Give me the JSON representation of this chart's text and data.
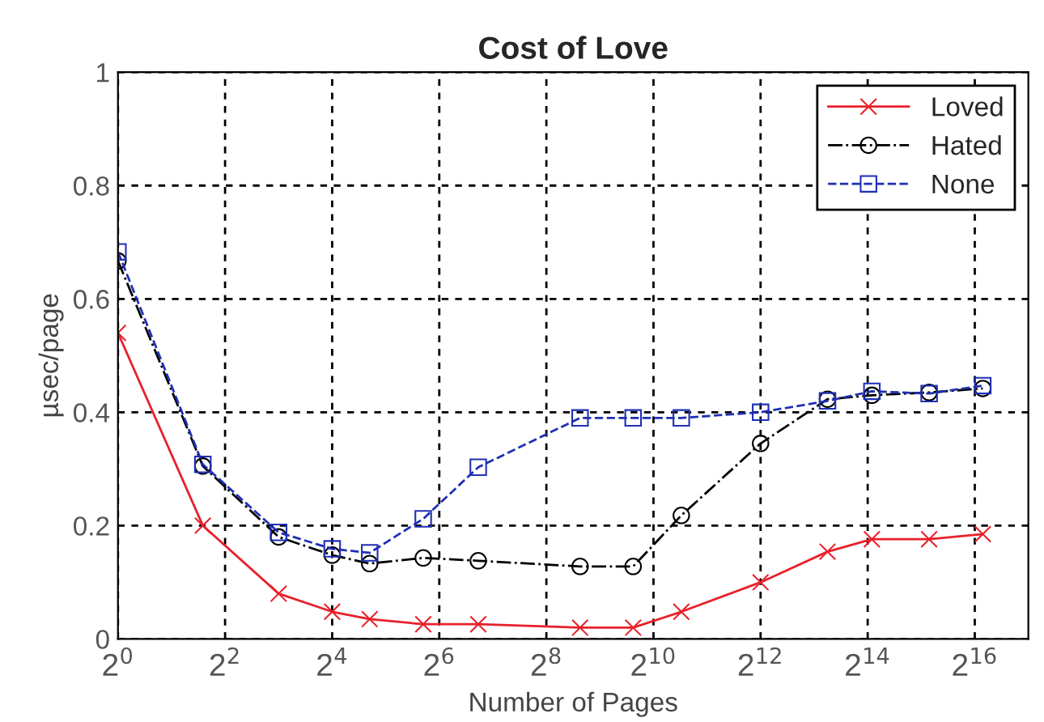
{
  "chart_data": {
    "type": "line",
    "title": "Cost of Love",
    "xlabel": "Number of Pages",
    "ylabel": "µsec/page",
    "x": [
      1,
      3,
      8,
      16,
      26,
      52,
      106,
      396,
      787,
      1468,
      4096,
      9741,
      17300,
      36300,
      72700
    ],
    "series": [
      {
        "name": "Loved",
        "color": "#e8212b",
        "marker": "cross",
        "line_style": "solid",
        "values": [
          0.54,
          0.2,
          0.08,
          0.048,
          0.035,
          0.026,
          0.026,
          0.02,
          0.02,
          0.048,
          0.1,
          0.154,
          0.176,
          0.176,
          0.185
        ]
      },
      {
        "name": "Hated",
        "color": "#000000",
        "marker": "circle",
        "line_style": "dashed",
        "values": [
          0.667,
          0.305,
          0.18,
          0.148,
          0.133,
          0.143,
          0.138,
          0.128,
          0.128,
          0.218,
          0.345,
          0.423,
          0.43,
          0.435,
          0.442
        ]
      },
      {
        "name": "None",
        "color": "#1f2fb4",
        "marker": "square",
        "line_style": "dotted",
        "values": [
          0.683,
          0.308,
          0.188,
          0.159,
          0.152,
          0.212,
          0.303,
          0.39,
          0.39,
          0.39,
          0.4,
          0.42,
          0.437,
          0.433,
          0.447
        ]
      }
    ],
    "log": "x",
    "xlim": [
      1,
      131072
    ],
    "xticks": [
      {
        "value": 1,
        "label": "2$^{0}$"
      },
      {
        "value": 4,
        "label": "2$^{2}$"
      },
      {
        "value": 16,
        "label": "2$^{4}$"
      },
      {
        "value": 64,
        "label": "2$^{6}$"
      },
      {
        "value": 256,
        "label": "2$^{8}$"
      },
      {
        "value": 1024,
        "label": "2$^{10}$"
      },
      {
        "value": 4096,
        "label": "2$^{12}$"
      },
      {
        "value": 16384,
        "label": "2$^{14}$"
      },
      {
        "value": 65536,
        "label": "2$^{16}$"
      }
    ],
    "ylim": [
      0,
      1
    ],
    "yticks": [
      0,
      0.2,
      0.4,
      0.6,
      0.8,
      1
    ],
    "grid": true,
    "legend": "top right"
  }
}
